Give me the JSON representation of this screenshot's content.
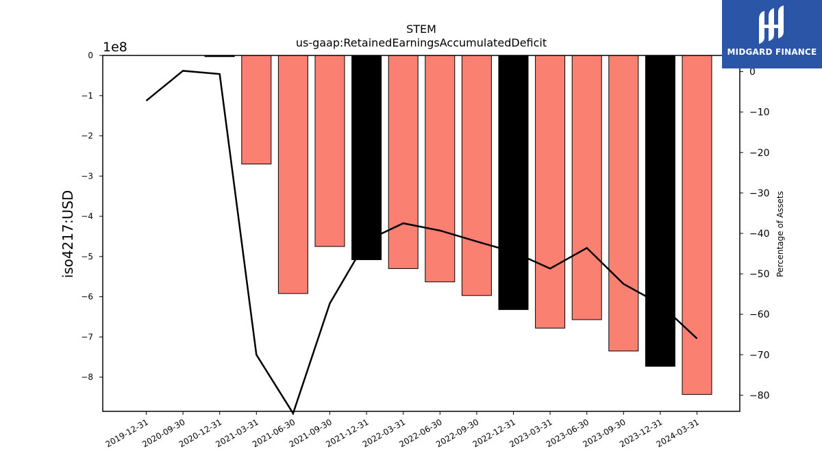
{
  "chart_data": {
    "type": "bar",
    "title": "STEM",
    "subtitle": "us-gaap:RetainedEarningsAccumulatedDeficit",
    "ylabel": "iso4217:USD",
    "y_offset_label": "1e8",
    "y2label": "Percentage of Assets",
    "categories": [
      "2019-12-31",
      "2020-09-30",
      "2020-12-31",
      "2021-03-31",
      "2021-06-30",
      "2021-09-30",
      "2021-12-31",
      "2022-03-31",
      "2022-06-30",
      "2022-09-30",
      "2022-12-31",
      "2023-03-31",
      "2023-06-30",
      "2023-09-30",
      "2023-12-31",
      "2024-03-31"
    ],
    "values": [
      0,
      0,
      -3000000,
      -270000000,
      -592000000,
      -475000000,
      -508000000,
      -530000000,
      -563000000,
      -597000000,
      -632000000,
      -678000000,
      -657000000,
      -735000000,
      -773000000,
      -843000000
    ],
    "bar_colors": [
      "#fa8072",
      "#fa8072",
      "#000000",
      "#fa8072",
      "#fa8072",
      "#fa8072",
      "#000000",
      "#fa8072",
      "#fa8072",
      "#fa8072",
      "#000000",
      "#fa8072",
      "#fa8072",
      "#fa8072",
      "#000000",
      "#fa8072"
    ],
    "line": {
      "axis": "right",
      "values": [
        -7.2,
        0.2,
        -0.6,
        -70.0,
        -84.5,
        -57.3,
        -41.8,
        -37.5,
        -39.3,
        -42.0,
        -44.6,
        -48.7,
        -43.6,
        -52.5,
        -57.5,
        -66.0
      ]
    },
    "ylim": [
      -885000000,
      0
    ],
    "yticks": [
      0,
      -100000000,
      -200000000,
      -300000000,
      -400000000,
      -500000000,
      -600000000,
      -700000000,
      -800000000
    ],
    "ytick_labels": [
      "0",
      "−1",
      "−2",
      "−3",
      "−4",
      "−5",
      "−6",
      "−7",
      "−8"
    ],
    "y2lim": [
      -84.0,
      4.0
    ],
    "y2ticks": [
      0,
      -10,
      -20,
      -30,
      -40,
      -50,
      -60,
      -70,
      -80
    ],
    "y2tick_labels": [
      "0",
      "−10",
      "−20",
      "−30",
      "−40",
      "−50",
      "−60",
      "−70",
      "−80"
    ],
    "grid": false,
    "legend": "none"
  },
  "logo": {
    "text": "MIDGARD FINANCE"
  }
}
